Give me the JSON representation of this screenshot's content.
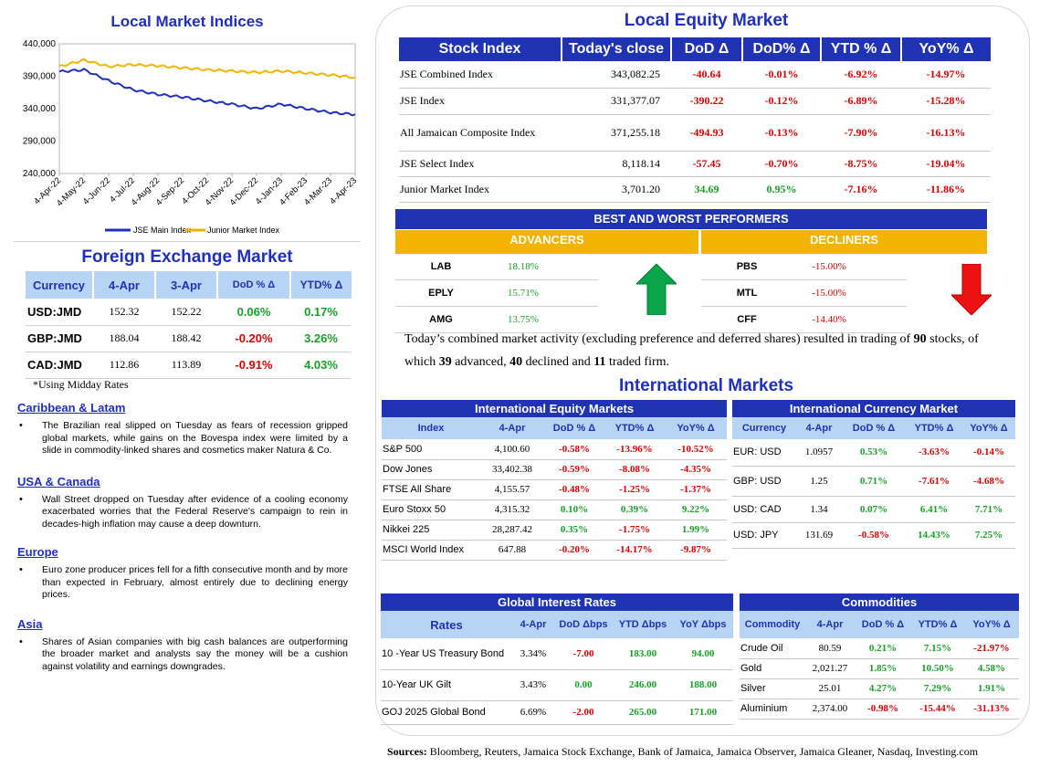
{
  "chart": {
    "title": "Local Market Indices",
    "y_ticks": [
      "440,000",
      "390,000",
      "340,000",
      "290,000",
      "240,000"
    ],
    "x_ticks": [
      "4-Apr-22",
      "4-May-22",
      "4-Jun-22",
      "4-Jul-22",
      "4-Aug-22",
      "4-Sep-22",
      "4-Oct-22",
      "4-Nov-22",
      "4-Dec-22",
      "4-Jan-23",
      "4-Feb-23",
      "4-Mar-23",
      "4-Apr-23"
    ],
    "legend": [
      "JSE Main Index",
      "Junior Market Index"
    ],
    "colors": {
      "main": "#1f2fbf",
      "junior": "#f2b400"
    }
  },
  "chart_data": {
    "type": "line",
    "x": [
      "4-Apr-22",
      "4-May-22",
      "4-Jun-22",
      "4-Jul-22",
      "4-Aug-22",
      "4-Sep-22",
      "4-Oct-22",
      "4-Nov-22",
      "4-Dec-22",
      "4-Jan-23",
      "4-Feb-23",
      "4-Mar-23",
      "4-Apr-23"
    ],
    "ylim": [
      240000,
      440000
    ],
    "series": [
      {
        "name": "JSE Main Index",
        "values": [
          397000,
          400000,
          383000,
          369000,
          362000,
          358000,
          352000,
          347000,
          340000,
          347000,
          340000,
          334000,
          331000
        ]
      },
      {
        "name": "Junior Market Index",
        "values": [
          405000,
          415000,
          405000,
          408000,
          406000,
          403000,
          400000,
          398000,
          396000,
          398000,
          395000,
          392000,
          388000
        ]
      }
    ]
  },
  "fx": {
    "title": "Foreign Exchange Market",
    "headers": [
      "Currency",
      "4-Apr",
      "3-Apr",
      "DoD % Δ",
      "YTD% Δ"
    ],
    "rows": [
      {
        "currency": "USD:JMD",
        "today": "152.32",
        "prev": "152.22",
        "dod": "0.06%",
        "ytd": "0.17%"
      },
      {
        "currency": "GBP:JMD",
        "today": "188.04",
        "prev": "188.42",
        "dod": "-0.20%",
        "ytd": "3.26%"
      },
      {
        "currency": "CAD:JMD",
        "today": "112.86",
        "prev": "113.89",
        "dod": "-0.91%",
        "ytd": "4.03%"
      }
    ],
    "note": "*Using Midday Rates"
  },
  "news": [
    {
      "heading": "Caribbean & Latam",
      "text": "The Brazilian real slipped on Tuesday as fears of recession gripped global markets, while gains on the Bovespa index were limited by a slide in commodity-linked shares and cosmetics maker Natura & Co."
    },
    {
      "heading": "USA & Canada",
      "text": "Wall Street dropped on Tuesday after evidence of a cooling economy exacerbated worries that the Federal Reserve's campaign to rein in decades-high inflation may cause a deep downturn."
    },
    {
      "heading": "Europe",
      "text": "Euro zone producer prices fell for a fifth consecutive month and by more than expected in February, almost entirely due to declining energy prices."
    },
    {
      "heading": "Asia",
      "text": "Shares of Asian companies with big cash balances are outperforming the broader market and analysts say the money will be a cushion against volatility and earnings downgrades."
    }
  ],
  "equity": {
    "title": "Local Equity Market",
    "headers": [
      "Stock Index",
      "Today's close",
      "DoD  Δ",
      "DoD% Δ",
      "YTD % Δ",
      "YoY% Δ"
    ],
    "rows": [
      {
        "name": "JSE Combined Index",
        "close": "343,082.25",
        "dod": "-40.64",
        "dodp": "-0.01%",
        "ytd": "-6.92%",
        "yoy": "-14.97%"
      },
      {
        "name": "JSE Index",
        "close": "331,377.07",
        "dod": "-390.22",
        "dodp": "-0.12%",
        "ytd": "-6.89%",
        "yoy": "-15.28%"
      },
      {
        "name": "All Jamaican Composite Index",
        "close": "371,255.18",
        "dod": "-494.93",
        "dodp": "-0.13%",
        "ytd": "-7.90%",
        "yoy": "-16.13%"
      },
      {
        "name": "JSE Select Index",
        "close": "8,118.14",
        "dod": "-57.45",
        "dodp": "-0.70%",
        "ytd": "-8.75%",
        "yoy": "-19.04%"
      },
      {
        "name": "Junior Market Index",
        "close": "3,701.20",
        "dod": "34.69",
        "dodp": "0.95%",
        "ytd": "-7.16%",
        "yoy": "-11.86%"
      }
    ]
  },
  "performers": {
    "title": "BEST AND WORST PERFORMERS",
    "advancers_label": "ADVANCERS",
    "decliners_label": "DECLINERS",
    "advancers": [
      {
        "ticker": "LAB",
        "change": "18.18%"
      },
      {
        "ticker": "EPLY",
        "change": "15.71%"
      },
      {
        "ticker": "AMG",
        "change": "13.75%"
      }
    ],
    "decliners": [
      {
        "ticker": "PBS",
        "change": "-15.00%"
      },
      {
        "ticker": "MTL",
        "change": "-15.00%"
      },
      {
        "ticker": "CFF",
        "change": "-14.40%"
      }
    ]
  },
  "summary": {
    "part1": "Today’s combined market activity (excluding preference and deferred shares) resulted in trading of ",
    "total": "90",
    "part2": " stocks, of which ",
    "advanced": "39",
    "part3": " advanced, ",
    "declined": "40",
    "part4": " declined and ",
    "firm": "11",
    "part5": " traded firm."
  },
  "intl": {
    "title": "International Markets",
    "equity": {
      "title": "International Equity Markets",
      "headers": [
        "Index",
        "4-Apr",
        "DoD % Δ",
        "YTD% Δ",
        "YoY% Δ"
      ],
      "rows": [
        {
          "name": "S&P 500",
          "value": "4,100.60",
          "dod": "-0.58%",
          "ytd": "-13.96%",
          "yoy": "-10.52%"
        },
        {
          "name": "Dow Jones",
          "value": "33,402.38",
          "dod": "-0.59%",
          "ytd": "-8.08%",
          "yoy": "-4.35%"
        },
        {
          "name": "FTSE All Share",
          "value": "4,155.57",
          "dod": "-0.48%",
          "ytd": "-1.25%",
          "yoy": "-1.37%"
        },
        {
          "name": "Euro Stoxx 50",
          "value": "4,315.32",
          "dod": "0.10%",
          "ytd": "0.39%",
          "yoy": "9.22%"
        },
        {
          "name": "Nikkei 225",
          "value": "28,287.42",
          "dod": "0.35%",
          "ytd": "-1.75%",
          "yoy": "1.99%"
        },
        {
          "name": "MSCI World Index",
          "value": "647.88",
          "dod": "-0.20%",
          "ytd": "-14.17%",
          "yoy": "-9.87%"
        }
      ]
    },
    "currency": {
      "title": "International Currency Market",
      "headers": [
        "Currency",
        "4-Apr",
        "DoD % Δ",
        "YTD% Δ",
        "YoY% Δ"
      ],
      "rows": [
        {
          "name": "EUR: USD",
          "value": "1.0957",
          "dod": "0.53%",
          "ytd": "-3.63%",
          "yoy": "-0.14%"
        },
        {
          "name": "GBP: USD",
          "value": "1.25",
          "dod": "0.71%",
          "ytd": "-7.61%",
          "yoy": "-4.68%"
        },
        {
          "name": "USD: CAD",
          "value": "1.34",
          "dod": "0.07%",
          "ytd": "6.41%",
          "yoy": "7.71%"
        },
        {
          "name": "USD: JPY",
          "value": "131.69",
          "dod": "-0.58%",
          "ytd": "14.43%",
          "yoy": "7.25%"
        }
      ]
    },
    "rates": {
      "title": "Global Interest Rates",
      "headers": [
        "Rates",
        "4-Apr",
        "DoD Δbps",
        "YTD Δbps",
        "YoY Δbps"
      ],
      "rows": [
        {
          "name": "10 -Year US Treasury Bond",
          "value": "3.34%",
          "dod": "-7.00",
          "ytd": "183.00",
          "yoy": "94.00"
        },
        {
          "name": "10-Year UK Gilt",
          "value": "3.43%",
          "dod": "0.00",
          "ytd": "246.00",
          "yoy": "188.00"
        },
        {
          "name": "GOJ 2025 Global Bond",
          "value": "6.69%",
          "dod": "-2.00",
          "ytd": "265.00",
          "yoy": "171.00"
        }
      ]
    },
    "commodities": {
      "title": "Commodities",
      "headers": [
        "Commodity",
        "4-Apr",
        "DoD % Δ",
        "YTD% Δ",
        "YoY% Δ"
      ],
      "rows": [
        {
          "name": "Crude Oil",
          "value": "80.59",
          "dod": "0.21%",
          "ytd": "7.15%",
          "yoy": "-21.97%"
        },
        {
          "name": "Gold",
          "value": "2,021.27",
          "dod": "1.85%",
          "ytd": "10.50%",
          "yoy": "4.58%"
        },
        {
          "name": "Silver",
          "value": "25.01",
          "dod": "4.27%",
          "ytd": "7.29%",
          "yoy": "1.91%"
        },
        {
          "name": "Aluminium",
          "value": "2,374.00",
          "dod": "-0.98%",
          "ytd": "-15.44%",
          "yoy": "-31.13%"
        }
      ]
    }
  },
  "sources": {
    "label": "Sources:",
    "text": " Bloomberg, Reuters, Jamaica Stock Exchange, Bank of Jamaica, Jamaica Observer, Jamaica Gleaner, Nasdaq, Investing.com"
  },
  "colors": {
    "positive": "#15a325",
    "negative": "#e00000",
    "header_blue": "#1f33b3",
    "header_light": "#b8d4f5",
    "gold": "#f2b400"
  }
}
